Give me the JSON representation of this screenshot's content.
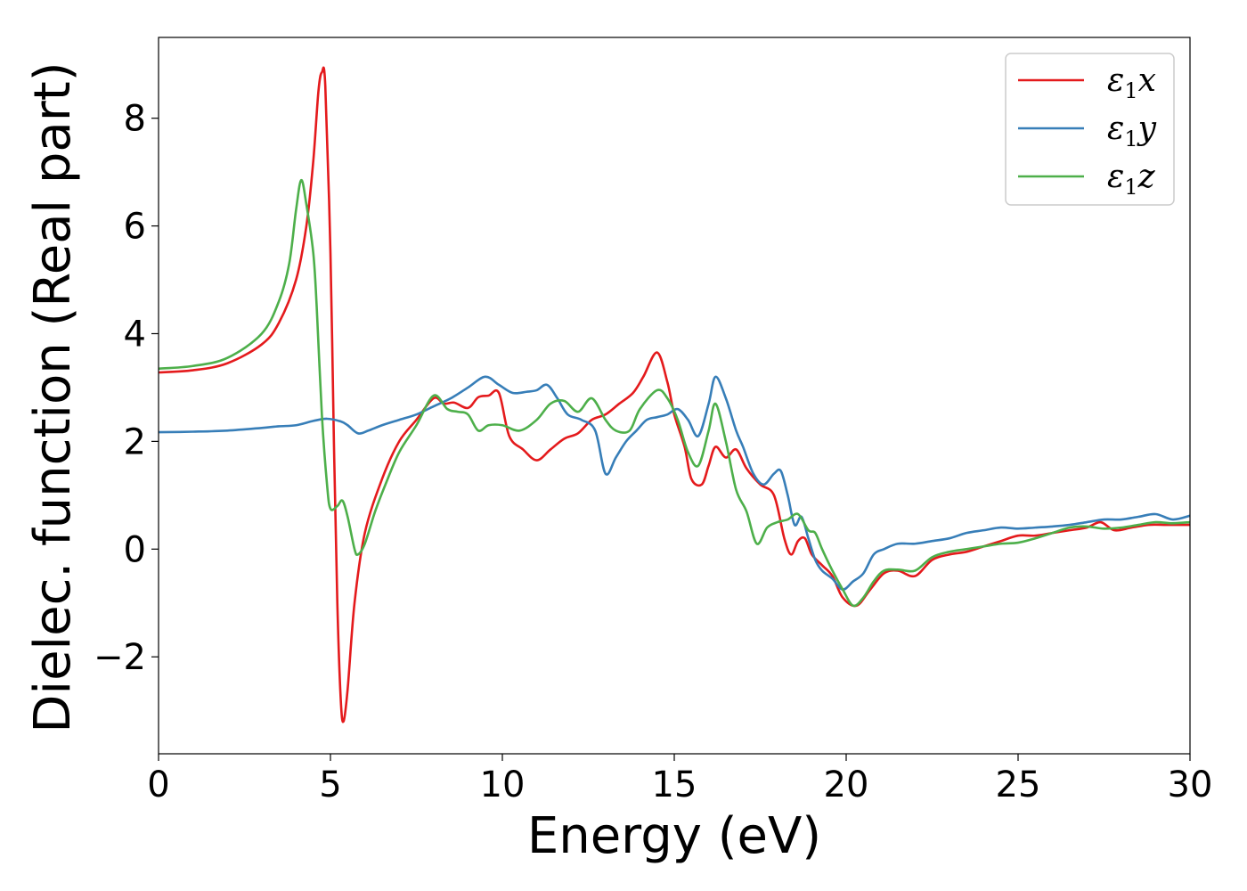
{
  "chart_data": {
    "type": "line",
    "title": "",
    "xlabel": "Energy (eV)",
    "ylabel": "Dielec. function (Real part)",
    "xlim": [
      0,
      30
    ],
    "ylim": [
      -3.8,
      9.5
    ],
    "xticks": [
      0,
      5,
      10,
      15,
      20,
      25,
      30
    ],
    "xtick_labels": [
      "0",
      "5",
      "10",
      "15",
      "20",
      "25",
      "30"
    ],
    "yticks": [
      -2,
      0,
      2,
      4,
      6,
      8
    ],
    "ytick_labels": [
      "−2",
      "0",
      "2",
      "4",
      "6",
      "8"
    ],
    "grid": false,
    "legend_position": "top-right",
    "series": [
      {
        "name": "ε1x",
        "symbol": "ε",
        "subscript": "1",
        "component": "x",
        "color": "#e41a1c",
        "points": [
          [
            0,
            3.28
          ],
          [
            1,
            3.32
          ],
          [
            2,
            3.45
          ],
          [
            3,
            3.8
          ],
          [
            3.5,
            4.2
          ],
          [
            4,
            5.0
          ],
          [
            4.3,
            6.0
          ],
          [
            4.5,
            7.2
          ],
          [
            4.65,
            8.5
          ],
          [
            4.75,
            8.85
          ],
          [
            4.85,
            8.6
          ],
          [
            5.0,
            5.5
          ],
          [
            5.1,
            2.0
          ],
          [
            5.2,
            -1.0
          ],
          [
            5.3,
            -2.8
          ],
          [
            5.38,
            -3.2
          ],
          [
            5.5,
            -2.6
          ],
          [
            5.7,
            -1.0
          ],
          [
            6.0,
            0.3
          ],
          [
            6.5,
            1.3
          ],
          [
            7.0,
            2.0
          ],
          [
            7.5,
            2.4
          ],
          [
            8.0,
            2.8
          ],
          [
            8.3,
            2.7
          ],
          [
            8.6,
            2.72
          ],
          [
            9.0,
            2.62
          ],
          [
            9.3,
            2.82
          ],
          [
            9.6,
            2.85
          ],
          [
            9.9,
            2.9
          ],
          [
            10.2,
            2.1
          ],
          [
            10.6,
            1.85
          ],
          [
            11.0,
            1.65
          ],
          [
            11.4,
            1.85
          ],
          [
            11.8,
            2.05
          ],
          [
            12.2,
            2.15
          ],
          [
            12.6,
            2.4
          ],
          [
            13.0,
            2.5
          ],
          [
            13.4,
            2.7
          ],
          [
            13.8,
            2.9
          ],
          [
            14.1,
            3.2
          ],
          [
            14.5,
            3.65
          ],
          [
            14.8,
            3.1
          ],
          [
            15.0,
            2.5
          ],
          [
            15.3,
            1.9
          ],
          [
            15.5,
            1.3
          ],
          [
            15.8,
            1.2
          ],
          [
            16.0,
            1.55
          ],
          [
            16.2,
            1.9
          ],
          [
            16.5,
            1.7
          ],
          [
            16.8,
            1.85
          ],
          [
            17.1,
            1.5
          ],
          [
            17.5,
            1.2
          ],
          [
            17.9,
            1.0
          ],
          [
            18.2,
            0.2
          ],
          [
            18.4,
            -0.1
          ],
          [
            18.6,
            0.15
          ],
          [
            18.8,
            0.2
          ],
          [
            19.0,
            -0.1
          ],
          [
            19.3,
            -0.3
          ],
          [
            19.6,
            -0.5
          ],
          [
            19.9,
            -0.9
          ],
          [
            20.3,
            -1.05
          ],
          [
            20.7,
            -0.75
          ],
          [
            21.1,
            -0.45
          ],
          [
            21.5,
            -0.4
          ],
          [
            22.0,
            -0.5
          ],
          [
            22.5,
            -0.2
          ],
          [
            23.0,
            -0.1
          ],
          [
            23.5,
            -0.05
          ],
          [
            24.0,
            0.05
          ],
          [
            24.5,
            0.15
          ],
          [
            25.0,
            0.25
          ],
          [
            25.5,
            0.25
          ],
          [
            26.0,
            0.3
          ],
          [
            26.5,
            0.35
          ],
          [
            27.0,
            0.4
          ],
          [
            27.4,
            0.5
          ],
          [
            27.8,
            0.35
          ],
          [
            28.3,
            0.4
          ],
          [
            28.8,
            0.45
          ],
          [
            29.3,
            0.45
          ],
          [
            29.7,
            0.45
          ],
          [
            30.0,
            0.45
          ]
        ]
      },
      {
        "name": "ε1y",
        "symbol": "ε",
        "subscript": "1",
        "component": "y",
        "color": "#377eb8",
        "points": [
          [
            0,
            2.17
          ],
          [
            1,
            2.18
          ],
          [
            2,
            2.2
          ],
          [
            3,
            2.25
          ],
          [
            3.5,
            2.28
          ],
          [
            4,
            2.3
          ],
          [
            4.5,
            2.38
          ],
          [
            4.9,
            2.42
          ],
          [
            5.3,
            2.37
          ],
          [
            5.5,
            2.3
          ],
          [
            5.8,
            2.15
          ],
          [
            6.1,
            2.2
          ],
          [
            6.5,
            2.3
          ],
          [
            7.0,
            2.4
          ],
          [
            7.5,
            2.5
          ],
          [
            8.0,
            2.65
          ],
          [
            8.5,
            2.8
          ],
          [
            9.0,
            3.0
          ],
          [
            9.5,
            3.2
          ],
          [
            9.9,
            3.05
          ],
          [
            10.3,
            2.9
          ],
          [
            10.7,
            2.92
          ],
          [
            11.0,
            2.95
          ],
          [
            11.3,
            3.05
          ],
          [
            11.6,
            2.8
          ],
          [
            11.9,
            2.5
          ],
          [
            12.3,
            2.4
          ],
          [
            12.7,
            2.2
          ],
          [
            13.0,
            1.4
          ],
          [
            13.3,
            1.7
          ],
          [
            13.6,
            2.0
          ],
          [
            13.9,
            2.2
          ],
          [
            14.2,
            2.4
          ],
          [
            14.5,
            2.45
          ],
          [
            14.8,
            2.5
          ],
          [
            15.1,
            2.6
          ],
          [
            15.4,
            2.4
          ],
          [
            15.7,
            2.1
          ],
          [
            16.0,
            2.7
          ],
          [
            16.2,
            3.2
          ],
          [
            16.5,
            2.8
          ],
          [
            16.8,
            2.2
          ],
          [
            17.0,
            1.9
          ],
          [
            17.3,
            1.4
          ],
          [
            17.6,
            1.2
          ],
          [
            17.9,
            1.4
          ],
          [
            18.1,
            1.45
          ],
          [
            18.3,
            1.0
          ],
          [
            18.5,
            0.45
          ],
          [
            18.7,
            0.6
          ],
          [
            18.9,
            0.2
          ],
          [
            19.1,
            -0.2
          ],
          [
            19.3,
            -0.4
          ],
          [
            19.6,
            -0.55
          ],
          [
            19.9,
            -0.75
          ],
          [
            20.2,
            -0.6
          ],
          [
            20.5,
            -0.45
          ],
          [
            20.8,
            -0.1
          ],
          [
            21.1,
            0.0
          ],
          [
            21.5,
            0.1
          ],
          [
            22.0,
            0.1
          ],
          [
            22.5,
            0.15
          ],
          [
            23.0,
            0.2
          ],
          [
            23.5,
            0.3
          ],
          [
            24.0,
            0.35
          ],
          [
            24.5,
            0.4
          ],
          [
            25.0,
            0.38
          ],
          [
            25.5,
            0.4
          ],
          [
            26.0,
            0.42
          ],
          [
            26.5,
            0.45
          ],
          [
            27.0,
            0.5
          ],
          [
            27.5,
            0.55
          ],
          [
            28.0,
            0.55
          ],
          [
            28.5,
            0.6
          ],
          [
            29.0,
            0.65
          ],
          [
            29.5,
            0.55
          ],
          [
            30.0,
            0.62
          ]
        ]
      },
      {
        "name": "ε1z",
        "symbol": "ε",
        "subscript": "1",
        "component": "z",
        "color": "#4daf4a",
        "points": [
          [
            0,
            3.35
          ],
          [
            1,
            3.4
          ],
          [
            2,
            3.55
          ],
          [
            3,
            4.0
          ],
          [
            3.5,
            4.6
          ],
          [
            3.8,
            5.3
          ],
          [
            4.0,
            6.3
          ],
          [
            4.15,
            6.85
          ],
          [
            4.3,
            6.4
          ],
          [
            4.5,
            5.5
          ],
          [
            4.6,
            4.5
          ],
          [
            4.75,
            2.5
          ],
          [
            4.9,
            1.2
          ],
          [
            5.0,
            0.75
          ],
          [
            5.2,
            0.8
          ],
          [
            5.35,
            0.9
          ],
          [
            5.5,
            0.6
          ],
          [
            5.7,
            0.0
          ],
          [
            5.8,
            -0.1
          ],
          [
            6.0,
            0.1
          ],
          [
            6.3,
            0.7
          ],
          [
            6.6,
            1.2
          ],
          [
            7.0,
            1.8
          ],
          [
            7.5,
            2.3
          ],
          [
            8.0,
            2.85
          ],
          [
            8.4,
            2.6
          ],
          [
            8.7,
            2.55
          ],
          [
            9.0,
            2.5
          ],
          [
            9.3,
            2.2
          ],
          [
            9.6,
            2.3
          ],
          [
            10.0,
            2.3
          ],
          [
            10.5,
            2.2
          ],
          [
            11.0,
            2.4
          ],
          [
            11.4,
            2.7
          ],
          [
            11.8,
            2.75
          ],
          [
            12.2,
            2.55
          ],
          [
            12.6,
            2.8
          ],
          [
            13.0,
            2.4
          ],
          [
            13.3,
            2.2
          ],
          [
            13.7,
            2.2
          ],
          [
            14.0,
            2.6
          ],
          [
            14.5,
            2.95
          ],
          [
            14.8,
            2.8
          ],
          [
            15.1,
            2.4
          ],
          [
            15.4,
            1.8
          ],
          [
            15.7,
            1.55
          ],
          [
            16.0,
            2.2
          ],
          [
            16.2,
            2.7
          ],
          [
            16.5,
            2.0
          ],
          [
            16.8,
            1.1
          ],
          [
            17.1,
            0.7
          ],
          [
            17.4,
            0.1
          ],
          [
            17.7,
            0.4
          ],
          [
            18.0,
            0.5
          ],
          [
            18.3,
            0.55
          ],
          [
            18.6,
            0.65
          ],
          [
            18.9,
            0.35
          ],
          [
            19.1,
            0.3
          ],
          [
            19.3,
            0.0
          ],
          [
            19.6,
            -0.4
          ],
          [
            19.9,
            -0.75
          ],
          [
            20.2,
            -1.05
          ],
          [
            20.5,
            -0.9
          ],
          [
            20.8,
            -0.6
          ],
          [
            21.1,
            -0.4
          ],
          [
            21.5,
            -0.38
          ],
          [
            22.0,
            -0.4
          ],
          [
            22.5,
            -0.15
          ],
          [
            23.0,
            -0.05
          ],
          [
            23.5,
            0.0
          ],
          [
            24.0,
            0.05
          ],
          [
            24.5,
            0.1
          ],
          [
            25.0,
            0.12
          ],
          [
            25.5,
            0.2
          ],
          [
            26.0,
            0.3
          ],
          [
            26.5,
            0.4
          ],
          [
            27.0,
            0.42
          ],
          [
            27.5,
            0.38
          ],
          [
            28.0,
            0.4
          ],
          [
            28.5,
            0.45
          ],
          [
            29.0,
            0.5
          ],
          [
            29.5,
            0.48
          ],
          [
            30.0,
            0.5
          ]
        ]
      }
    ]
  }
}
